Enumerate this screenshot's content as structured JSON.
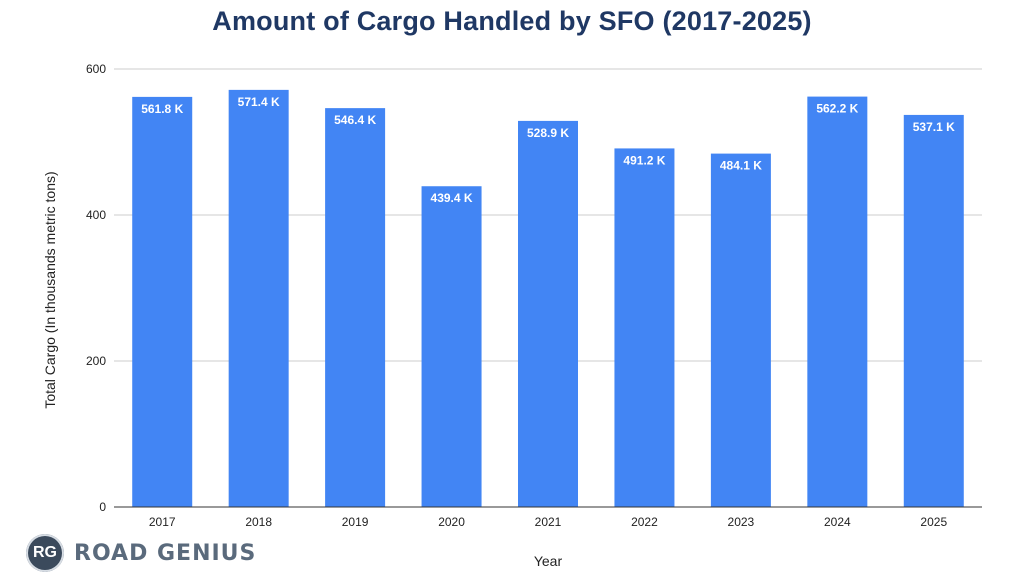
{
  "chart_data": {
    "type": "bar",
    "title": "Amount of Cargo Handled by SFO (2017-2025)",
    "xlabel": "Year",
    "ylabel": "Total Cargo (In thousands metric tons)",
    "categories": [
      "2017",
      "2018",
      "2019",
      "2020",
      "2021",
      "2022",
      "2023",
      "2024",
      "2025"
    ],
    "values": [
      561.8,
      571.4,
      546.4,
      439.4,
      528.9,
      491.2,
      484.1,
      562.2,
      537.1
    ],
    "data_labels": [
      "561.8 K",
      "571.4 K",
      "546.4 K",
      "439.4 K",
      "528.9 K",
      "491.2 K",
      "484.1 K",
      "562.2 K",
      "537.1 K"
    ],
    "yticks": [
      0,
      200,
      400,
      600
    ],
    "ylim": [
      0,
      600
    ],
    "grid": true,
    "bar_color": "#4285f4"
  },
  "logo": {
    "initials": "RG",
    "name": "ROAD GENIUS"
  }
}
